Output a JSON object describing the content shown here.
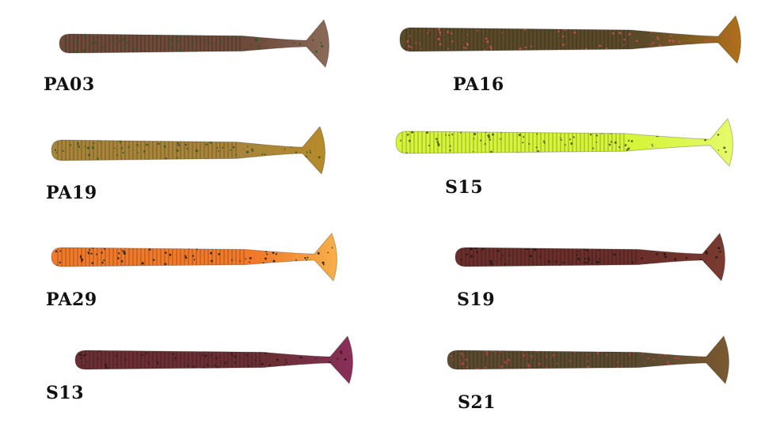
{
  "lures": [
    {
      "code": "PA03",
      "body_color": "#6e4a3a",
      "tail_color": "#8a6a58",
      "speck_color": "#2f5a2a"
    },
    {
      "code": "PA19",
      "body_color": "#a8853a",
      "tail_color": "#b58a2a",
      "speck_color": "#3d5a2a"
    },
    {
      "code": "PA29",
      "body_color": "#f07a2a",
      "tail_color": "#f7b04a",
      "speck_color": "#3a2a1a"
    },
    {
      "code": "S13",
      "body_color": "#6a2f35",
      "tail_color": "#8a2f5a",
      "speck_color": "#3a1a1a"
    },
    {
      "code": "PA16",
      "body_color": "#5a4a2a",
      "tail_color": "#b0701a",
      "speck_color": "#c05050"
    },
    {
      "code": "S15",
      "body_color": "#d6f53a",
      "tail_color": "#e6fa6a",
      "speck_color": "#556a20"
    },
    {
      "code": "S19",
      "body_color": "#6a2f2a",
      "tail_color": "#7a3a30",
      "speck_color": "#2a1a1a"
    },
    {
      "code": "S21",
      "body_color": "#5a4a30",
      "tail_color": "#7a5a30",
      "speck_color": "#b04040"
    }
  ]
}
